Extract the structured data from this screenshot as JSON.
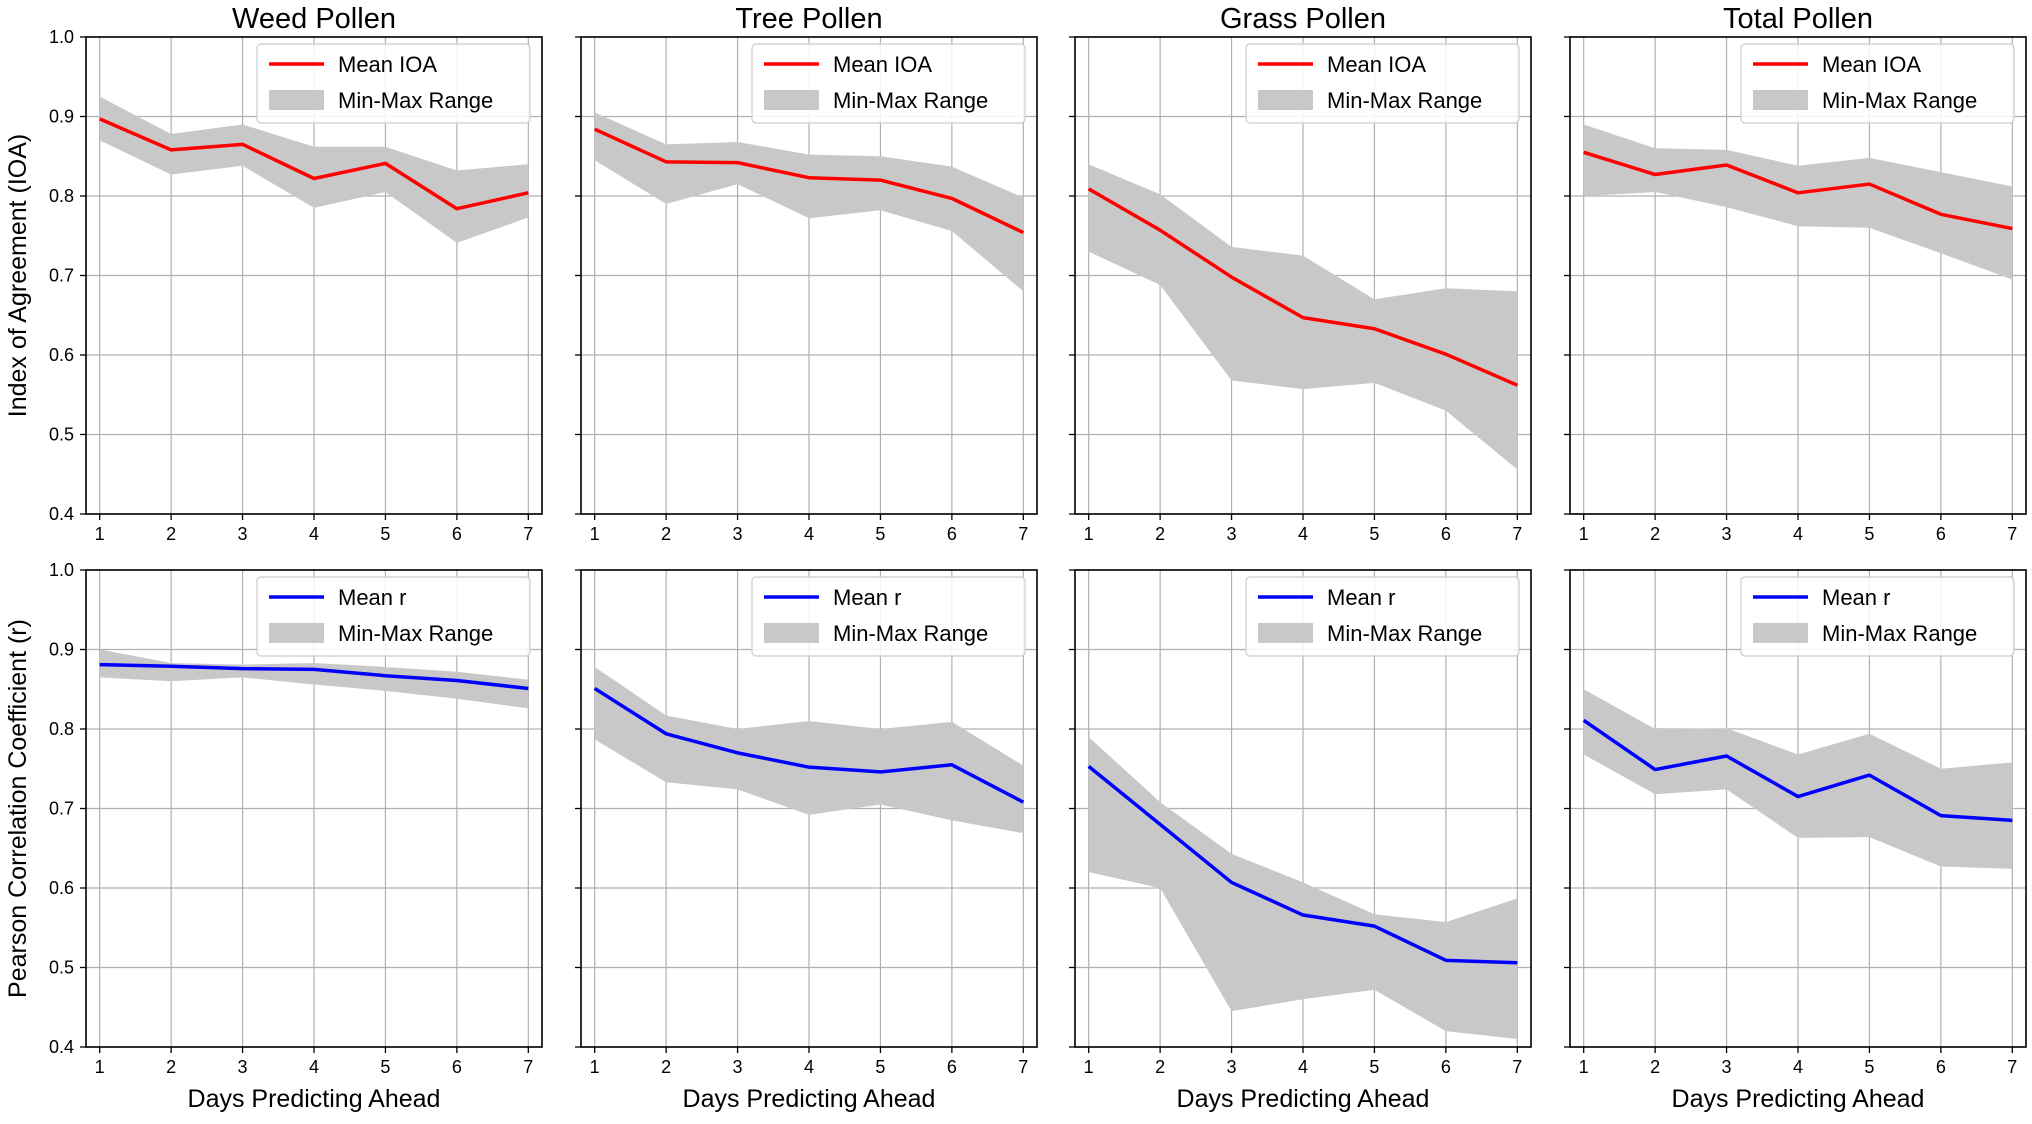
{
  "chart_data": [
    {
      "type": "line",
      "title": "Weed Pollen",
      "xlabel": "",
      "ylabel": "Index of Agreement (IOA)",
      "x": [
        1,
        2,
        3,
        4,
        5,
        6,
        7
      ],
      "ylim": [
        0.4,
        1.0
      ],
      "yticks": [
        "0.4",
        "0.5",
        "0.6",
        "0.7",
        "0.8",
        "0.9",
        "1.0"
      ],
      "grid": true,
      "legend": "top-right",
      "series": [
        {
          "name": "Mean IOA",
          "color": "#ff0000",
          "values": [
            0.897,
            0.858,
            0.865,
            0.822,
            0.841,
            0.784,
            0.804
          ]
        },
        {
          "name": "Min-Max Range",
          "color": "#c8c8c8",
          "type": "area",
          "lower": [
            0.87,
            0.827,
            0.838,
            0.785,
            0.805,
            0.741,
            0.773
          ],
          "upper": [
            0.925,
            0.878,
            0.89,
            0.862,
            0.862,
            0.832,
            0.84
          ]
        }
      ]
    },
    {
      "type": "line",
      "title": "Tree Pollen",
      "xlabel": "",
      "ylabel": "",
      "x": [
        1,
        2,
        3,
        4,
        5,
        6,
        7
      ],
      "ylim": [
        0.4,
        1.0
      ],
      "yticks": [
        "0.4",
        "0.5",
        "0.6",
        "0.7",
        "0.8",
        "0.9",
        "1.0"
      ],
      "grid": true,
      "legend": "top-right",
      "series": [
        {
          "name": "Mean IOA",
          "color": "#ff0000",
          "values": [
            0.884,
            0.843,
            0.842,
            0.823,
            0.82,
            0.797,
            0.754
          ]
        },
        {
          "name": "Min-Max Range",
          "color": "#c8c8c8",
          "type": "area",
          "lower": [
            0.845,
            0.79,
            0.815,
            0.772,
            0.782,
            0.756,
            0.68
          ],
          "upper": [
            0.905,
            0.865,
            0.868,
            0.852,
            0.85,
            0.837,
            0.798
          ]
        }
      ]
    },
    {
      "type": "line",
      "title": "Grass Pollen",
      "xlabel": "",
      "ylabel": "",
      "x": [
        1,
        2,
        3,
        4,
        5,
        6,
        7
      ],
      "ylim": [
        0.4,
        1.0
      ],
      "yticks": [
        "0.4",
        "0.5",
        "0.6",
        "0.7",
        "0.8",
        "0.9",
        "1.0"
      ],
      "grid": true,
      "legend": "top-right",
      "series": [
        {
          "name": "Mean IOA",
          "color": "#ff0000",
          "values": [
            0.809,
            0.757,
            0.698,
            0.647,
            0.633,
            0.601,
            0.562
          ]
        },
        {
          "name": "Min-Max Range",
          "color": "#c8c8c8",
          "type": "area",
          "lower": [
            0.73,
            0.688,
            0.568,
            0.557,
            0.565,
            0.53,
            0.456
          ],
          "upper": [
            0.84,
            0.802,
            0.736,
            0.725,
            0.67,
            0.684,
            0.68
          ]
        }
      ]
    },
    {
      "type": "line",
      "title": "Total Pollen",
      "xlabel": "",
      "ylabel": "",
      "x": [
        1,
        2,
        3,
        4,
        5,
        6,
        7
      ],
      "ylim": [
        0.4,
        1.0
      ],
      "yticks": [
        "0.4",
        "0.5",
        "0.6",
        "0.7",
        "0.8",
        "0.9",
        "1.0"
      ],
      "grid": true,
      "legend": "top-right",
      "series": [
        {
          "name": "Mean IOA",
          "color": "#ff0000",
          "values": [
            0.855,
            0.827,
            0.839,
            0.804,
            0.815,
            0.777,
            0.759
          ]
        },
        {
          "name": "Min-Max Range",
          "color": "#c8c8c8",
          "type": "area",
          "lower": [
            0.8,
            0.805,
            0.786,
            0.762,
            0.76,
            0.728,
            0.695
          ],
          "upper": [
            0.89,
            0.86,
            0.858,
            0.838,
            0.848,
            0.83,
            0.812
          ]
        }
      ]
    },
    {
      "type": "line",
      "title": "",
      "xlabel": "Days Predicting Ahead",
      "ylabel": "Pearson Correlation Coefficient (r)",
      "x": [
        1,
        2,
        3,
        4,
        5,
        6,
        7
      ],
      "ylim": [
        0.4,
        1.0
      ],
      "yticks": [
        "0.4",
        "0.5",
        "0.6",
        "0.7",
        "0.8",
        "0.9",
        "1.0"
      ],
      "grid": true,
      "legend": "top-right",
      "series": [
        {
          "name": "Mean r",
          "color": "#0000ff",
          "values": [
            0.881,
            0.879,
            0.876,
            0.875,
            0.867,
            0.861,
            0.851
          ]
        },
        {
          "name": "Min-Max Range",
          "color": "#c8c8c8",
          "type": "area",
          "lower": [
            0.865,
            0.86,
            0.865,
            0.856,
            0.848,
            0.838,
            0.826
          ],
          "upper": [
            0.9,
            0.883,
            0.881,
            0.883,
            0.878,
            0.872,
            0.862
          ]
        }
      ]
    },
    {
      "type": "line",
      "title": "",
      "xlabel": "Days Predicting Ahead",
      "ylabel": "",
      "x": [
        1,
        2,
        3,
        4,
        5,
        6,
        7
      ],
      "ylim": [
        0.4,
        1.0
      ],
      "yticks": [
        "0.4",
        "0.5",
        "0.6",
        "0.7",
        "0.8",
        "0.9",
        "1.0"
      ],
      "grid": true,
      "legend": "top-right",
      "series": [
        {
          "name": "Mean r",
          "color": "#0000ff",
          "values": [
            0.851,
            0.794,
            0.77,
            0.752,
            0.746,
            0.755,
            0.708
          ]
        },
        {
          "name": "Min-Max Range",
          "color": "#c8c8c8",
          "type": "area",
          "lower": [
            0.787,
            0.733,
            0.724,
            0.692,
            0.705,
            0.685,
            0.669
          ],
          "upper": [
            0.878,
            0.817,
            0.8,
            0.81,
            0.8,
            0.809,
            0.754
          ]
        }
      ]
    },
    {
      "type": "line",
      "title": "",
      "xlabel": "Days Predicting Ahead",
      "ylabel": "",
      "x": [
        1,
        2,
        3,
        4,
        5,
        6,
        7
      ],
      "ylim": [
        0.4,
        1.0
      ],
      "yticks": [
        "0.4",
        "0.5",
        "0.6",
        "0.7",
        "0.8",
        "0.9",
        "1.0"
      ],
      "grid": true,
      "legend": "top-right",
      "series": [
        {
          "name": "Mean r",
          "color": "#0000ff",
          "values": [
            0.753,
            0.68,
            0.607,
            0.566,
            0.552,
            0.509,
            0.506
          ]
        },
        {
          "name": "Min-Max Range",
          "color": "#c8c8c8",
          "type": "area",
          "lower": [
            0.62,
            0.6,
            0.445,
            0.46,
            0.472,
            0.42,
            0.41
          ],
          "upper": [
            0.79,
            0.708,
            0.643,
            0.607,
            0.567,
            0.557,
            0.587
          ]
        }
      ]
    },
    {
      "type": "line",
      "title": "",
      "xlabel": "Days Predicting Ahead",
      "ylabel": "",
      "x": [
        1,
        2,
        3,
        4,
        5,
        6,
        7
      ],
      "ylim": [
        0.4,
        1.0
      ],
      "yticks": [
        "0.4",
        "0.5",
        "0.6",
        "0.7",
        "0.8",
        "0.9",
        "1.0"
      ],
      "grid": true,
      "legend": "top-right",
      "series": [
        {
          "name": "Mean r",
          "color": "#0000ff",
          "values": [
            0.811,
            0.749,
            0.766,
            0.715,
            0.742,
            0.691,
            0.685
          ]
        },
        {
          "name": "Min-Max Range",
          "color": "#c8c8c8",
          "type": "area",
          "lower": [
            0.768,
            0.718,
            0.724,
            0.663,
            0.664,
            0.627,
            0.624
          ],
          "upper": [
            0.85,
            0.8,
            0.801,
            0.768,
            0.794,
            0.75,
            0.758
          ]
        }
      ]
    }
  ]
}
